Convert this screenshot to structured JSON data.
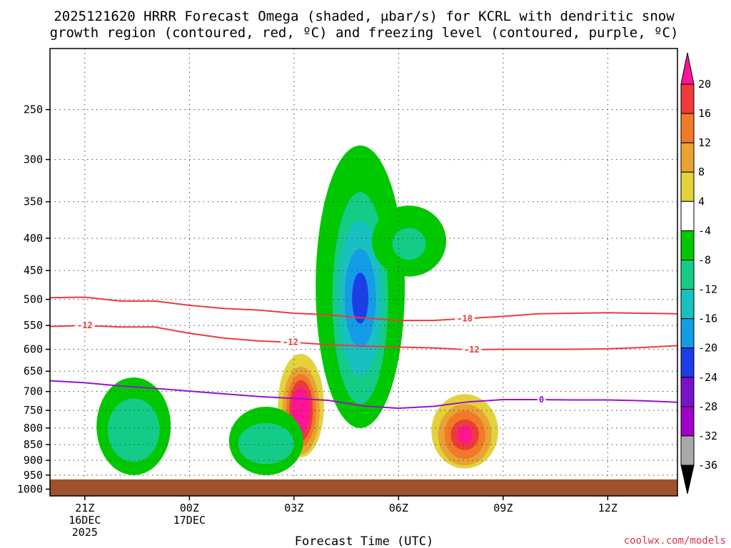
{
  "chart_data": {
    "type": "contour",
    "title_line1": "2025121620 HRRR Forecast Omega (shaded, μbar/s) for KCRL with dendritic snow",
    "title_line2": "growth region (contoured, red, ºC) and freezing level (contoured, purple, ºC)",
    "xlabel": "Forecast Time (UTC)",
    "credit": "coolwx.com/models",
    "x_ticks": [
      {
        "hour": 1,
        "lines": [
          "21Z",
          "16DEC",
          "2025"
        ]
      },
      {
        "hour": 4,
        "lines": [
          "00Z",
          "17DEC"
        ]
      },
      {
        "hour": 7,
        "lines": [
          "03Z"
        ]
      },
      {
        "hour": 10,
        "lines": [
          "06Z"
        ]
      },
      {
        "hour": 13,
        "lines": [
          "09Z"
        ]
      },
      {
        "hour": 16,
        "lines": [
          "12Z"
        ]
      }
    ],
    "x_range": [
      0.0,
      18.0
    ],
    "y_ticks": [
      250,
      300,
      350,
      400,
      450,
      500,
      550,
      600,
      650,
      700,
      750,
      800,
      850,
      900,
      950,
      1000
    ],
    "y_range_hpa": [
      1025,
      200
    ],
    "surface_pressure_hpa": 965,
    "colorbar": {
      "labels": [
        "20",
        "16",
        "12",
        "8",
        "4",
        "-4",
        "-8",
        "-12",
        "-16",
        "-20",
        "-24",
        "-28",
        "-32",
        "-36"
      ],
      "colors": [
        "#ff1493",
        "#ee3a3a",
        "#f07a28",
        "#e8a332",
        "#e3d23c",
        "#ffffff",
        "#00c800",
        "#14cc88",
        "#18c0c0",
        "#149ce6",
        "#1c3ee6",
        "#7a12c8",
        "#a000c8",
        "#a9a9a9",
        "#000000"
      ]
    },
    "contours": [
      {
        "name": "-18",
        "color": "#ee3a3a",
        "label": "-18",
        "points": [
          [
            0,
            497
          ],
          [
            1,
            496
          ],
          [
            2,
            503
          ],
          [
            3,
            503
          ],
          [
            4,
            511
          ],
          [
            5,
            517
          ],
          [
            6,
            520
          ],
          [
            7,
            526
          ],
          [
            8,
            529
          ],
          [
            9,
            535
          ],
          [
            10,
            540
          ],
          [
            11,
            540
          ],
          [
            12,
            536
          ],
          [
            13,
            532
          ],
          [
            14,
            527
          ],
          [
            15,
            526
          ],
          [
            16,
            525
          ],
          [
            17,
            526
          ],
          [
            18,
            527
          ]
        ]
      },
      {
        "name": "-12",
        "color": "#ee3a3a",
        "label": "-12",
        "points": [
          [
            0,
            552
          ],
          [
            1,
            550
          ],
          [
            2,
            553
          ],
          [
            3,
            553
          ],
          [
            4,
            566
          ],
          [
            5,
            576
          ],
          [
            6,
            582
          ],
          [
            7,
            585
          ],
          [
            8,
            590
          ],
          [
            9,
            593
          ],
          [
            10,
            595
          ],
          [
            11,
            597
          ],
          [
            12,
            601
          ],
          [
            13,
            600
          ],
          [
            14,
            600
          ],
          [
            15,
            600
          ],
          [
            16,
            599
          ],
          [
            17,
            596
          ],
          [
            18,
            592
          ]
        ]
      },
      {
        "name": "0",
        "color": "#9b12c8",
        "label": "0",
        "points": [
          [
            0,
            673
          ],
          [
            1,
            678
          ],
          [
            2,
            686
          ],
          [
            3,
            692
          ],
          [
            4,
            699
          ],
          [
            5,
            706
          ],
          [
            6,
            713
          ],
          [
            7,
            718
          ],
          [
            8,
            723
          ],
          [
            9,
            738
          ],
          [
            10,
            744
          ],
          [
            11,
            739
          ],
          [
            12,
            727
          ],
          [
            13,
            721
          ],
          [
            14,
            721
          ],
          [
            15,
            722
          ],
          [
            16,
            722
          ],
          [
            17,
            724
          ],
          [
            18,
            728
          ]
        ]
      }
    ],
    "contour_labels": [
      {
        "text": "-12",
        "series": "-12",
        "hour": 1.0
      },
      {
        "text": "-12",
        "series": "-12",
        "hour": 6.9
      },
      {
        "text": "-12",
        "series": "-12",
        "hour": 12.1
      },
      {
        "text": "-18",
        "series": "-18",
        "hour": 11.9
      },
      {
        "text": "0",
        "series": "0",
        "hour": 14.1
      }
    ],
    "omega_features": [
      {
        "name": "upward-core-0300z",
        "sign": "up",
        "hour": 7.2,
        "p_top": 590,
        "p_bot": 920,
        "layers": [
          [
            0.62,
            0.85,
            4
          ],
          [
            0.5,
            0.72,
            8
          ],
          [
            0.4,
            0.6,
            12
          ],
          [
            0.32,
            0.5,
            16
          ],
          [
            0.25,
            0.38,
            20
          ]
        ]
      },
      {
        "name": "upward-core-0700z",
        "sign": "up",
        "hour": 11.9,
        "p_top": 690,
        "p_bot": 950,
        "layers": [
          [
            0.9,
            0.85,
            4
          ],
          [
            0.72,
            0.7,
            8
          ],
          [
            0.55,
            0.55,
            12
          ],
          [
            0.38,
            0.35,
            16
          ],
          [
            0.2,
            0.2,
            20
          ]
        ]
      },
      {
        "name": "downward-core-0400z",
        "sign": "down",
        "hour": 8.9,
        "p_top": 285,
        "p_bot": 800,
        "layers": [
          [
            1.2,
            1.0,
            -4
          ],
          [
            0.75,
            0.75,
            -8
          ],
          [
            0.6,
            0.55,
            -12
          ],
          [
            0.42,
            0.35,
            -16
          ],
          [
            0.22,
            0.18,
            -20
          ]
        ]
      },
      {
        "name": "downward-lowlevel-21z",
        "sign": "down",
        "hour": 2.4,
        "p_top": 665,
        "p_bot": 950,
        "layers": [
          [
            1.0,
            1.0,
            -4
          ],
          [
            0.7,
            0.65,
            -8
          ]
        ]
      },
      {
        "name": "downward-lowlevel-01z",
        "sign": "down",
        "hour": 6.2,
        "p_top": 740,
        "p_bot": 950,
        "layers": [
          [
            1.0,
            1.0,
            -4
          ],
          [
            0.75,
            0.6,
            -8
          ]
        ]
      },
      {
        "name": "downward-upper-06z",
        "sign": "down",
        "hour": 10.3,
        "p_top": 355,
        "p_bot": 460,
        "layers": [
          [
            1.0,
            1.0,
            -4
          ],
          [
            0.45,
            0.45,
            -8
          ]
        ]
      }
    ]
  }
}
